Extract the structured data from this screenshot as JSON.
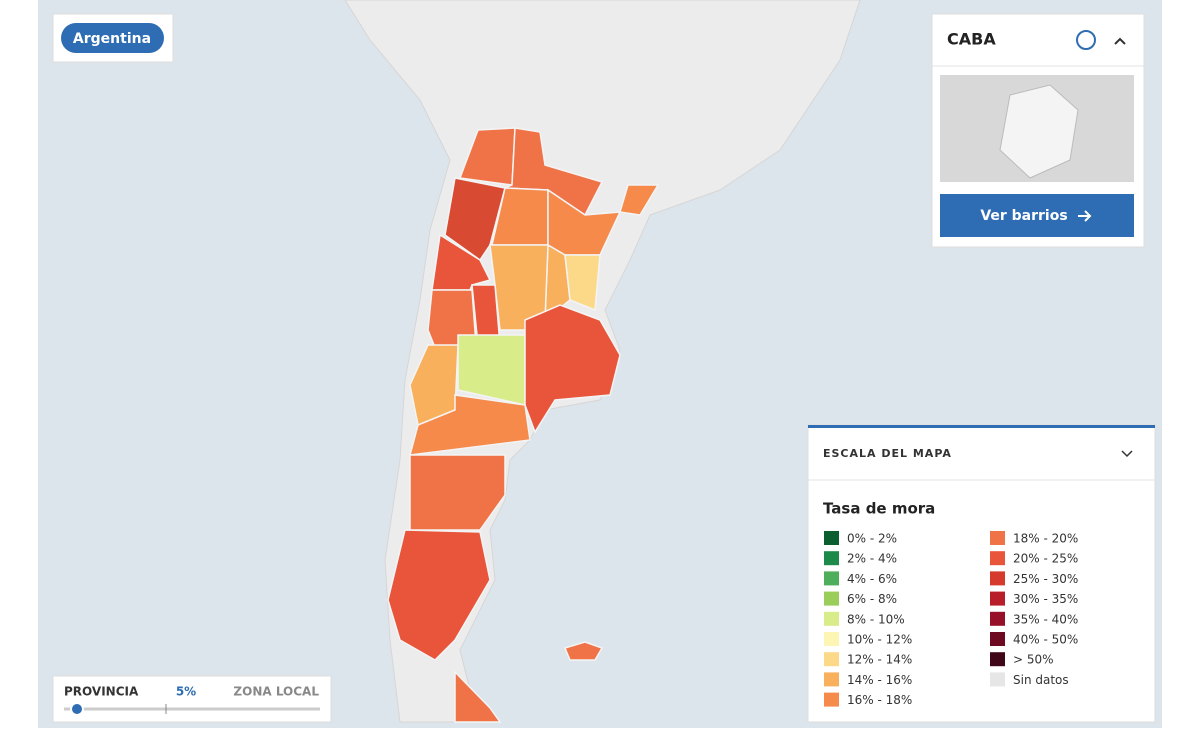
{
  "badge": "Argentina",
  "caba_panel": {
    "title": "CABA",
    "button": "Ver barrios"
  },
  "legend": {
    "header": "ESCALA DEL MAPA",
    "title": "Tasa de mora",
    "items": [
      {
        "label": "0% - 2%",
        "color": "#0b5e2f"
      },
      {
        "label": "2% - 4%",
        "color": "#1e8a4a"
      },
      {
        "label": "4% - 6%",
        "color": "#4fae5b"
      },
      {
        "label": "6% - 8%",
        "color": "#9acd59"
      },
      {
        "label": "8% - 10%",
        "color": "#d9ec8a"
      },
      {
        "label": "10% - 12%",
        "color": "#fdf5b3"
      },
      {
        "label": "12% - 14%",
        "color": "#fbd988"
      },
      {
        "label": "14% - 16%",
        "color": "#f9b05c"
      },
      {
        "label": "16% - 18%",
        "color": "#f58a4b"
      },
      {
        "label": "18% - 20%",
        "color": "#f07348"
      },
      {
        "label": "20% - 25%",
        "color": "#e8553a"
      },
      {
        "label": "25% - 30%",
        "color": "#d63a2c"
      },
      {
        "label": "30% - 35%",
        "color": "#b81e2a"
      },
      {
        "label": "35% - 40%",
        "color": "#96102a"
      },
      {
        "label": "40% - 50%",
        "color": "#6d0a22"
      },
      {
        "label": "> 50%",
        "color": "#3f0717"
      },
      {
        "label": "Sin datos",
        "color": "#e6e6e6"
      }
    ]
  },
  "slider": {
    "left": "PROVINCIA",
    "value": "5%",
    "right": "ZONA LOCAL"
  }
}
